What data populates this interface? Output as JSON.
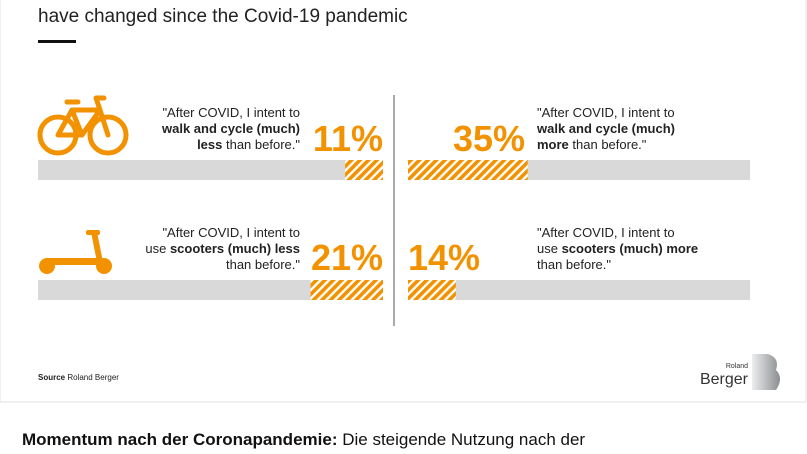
{
  "chart_data": {
    "type": "diverging-bar",
    "title": "have changed since the Covid-19 pandemic",
    "color": "#f39200",
    "track_color": "#d9d9da",
    "xlim": [
      0,
      100
    ],
    "rows": [
      {
        "left_quote": [
          [
            {
              "text": "\"After COVID, I intent to",
              "bold": false
            }
          ],
          [
            {
              "text": "walk and cycle (much)",
              "bold": true
            }
          ],
          [
            {
              "text": "less",
              "bold": true
            },
            {
              "text": " than before.\"",
              "bold": false
            }
          ]
        ],
        "right_quote": [
          [
            {
              "text": "\"After COVID, I intent to",
              "bold": false
            }
          ],
          [
            {
              "text": "walk and cycle (much)",
              "bold": true
            }
          ],
          [
            {
              "text": "more",
              "bold": true
            },
            {
              "text": " than before.\"",
              "bold": false
            }
          ]
        ],
        "values": [
          11,
          35
        ],
        "value_labels": [
          "11%",
          "35%"
        ]
      },
      {
        "left_quote": [
          [
            {
              "text": "\"After COVID, I intent to",
              "bold": false
            }
          ],
          [
            {
              "text": "use ",
              "bold": false
            },
            {
              "text": "scooters (much) less",
              "bold": true
            }
          ],
          [
            {
              "text": "than before.\"",
              "bold": false
            }
          ]
        ],
        "right_quote": [
          [
            {
              "text": "\"After COVID, I intent to",
              "bold": false
            }
          ],
          [
            {
              "text": "use ",
              "bold": false
            },
            {
              "text": "scooters (much) more",
              "bold": true
            }
          ],
          [
            {
              "text": "than before.\"",
              "bold": false
            }
          ]
        ],
        "values": [
          21,
          14
        ],
        "value_labels": [
          "21%",
          "14%"
        ]
      }
    ]
  },
  "source": {
    "label": "Source",
    "text": " Roland Berger"
  },
  "logo": {
    "small": "Roland",
    "big": "Berger"
  },
  "caption": {
    "bold": "Momentum nach der Coronapandemie:",
    "text": " Die steigende Nutzung nach der"
  }
}
